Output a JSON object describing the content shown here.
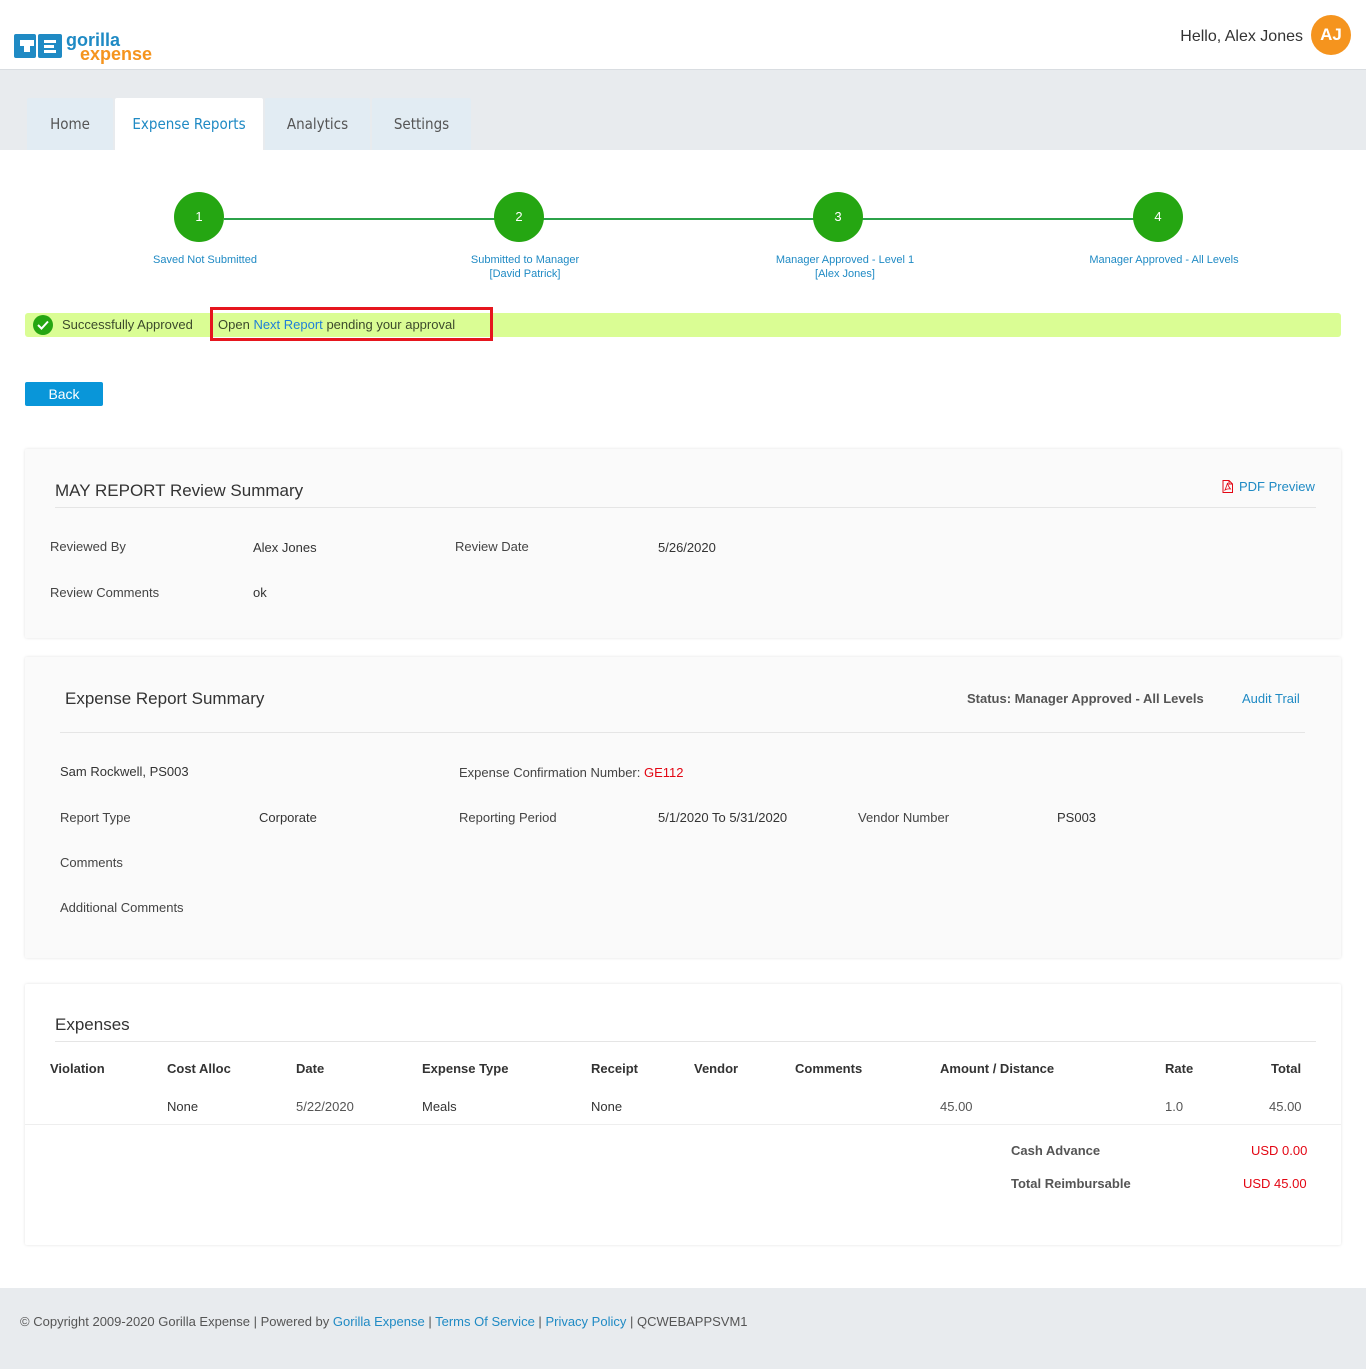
{
  "header": {
    "logo_text_1": "gorilla",
    "logo_text_2": "expense",
    "greeting": "Hello, Alex Jones",
    "avatar_initials": "AJ"
  },
  "tabs": [
    {
      "label": "Home",
      "active": false
    },
    {
      "label": "Expense Reports",
      "active": true
    },
    {
      "label": "Analytics",
      "active": false
    },
    {
      "label": "Settings",
      "active": false
    }
  ],
  "stepper": {
    "steps": [
      {
        "number": "1",
        "line1": "Saved Not Submitted",
        "line2": ""
      },
      {
        "number": "2",
        "line1": "Submitted to Manager",
        "line2": "[David Patrick]"
      },
      {
        "number": "3",
        "line1": "Manager Approved - Level 1",
        "line2": "[Alex Jones]"
      },
      {
        "number": "4",
        "line1": "Manager Approved - All Levels",
        "line2": ""
      }
    ]
  },
  "alert": {
    "message": "Successfully Approved",
    "open_prefix": "Open",
    "next_report_link": "Next Report",
    "open_suffix": "pending your approval"
  },
  "back_label": "Back",
  "review": {
    "title": "MAY REPORT Review Summary",
    "pdf_preview": "PDF Preview",
    "reviewed_by_label": "Reviewed By",
    "reviewed_by": "Alex Jones",
    "review_date_label": "Review Date",
    "review_date": "5/26/2020",
    "comments_label": "Review Comments",
    "comments": "ok"
  },
  "summary": {
    "title": "Expense Report Summary",
    "status": "Status: Manager Approved - All Levels",
    "audit_trail": "Audit Trail",
    "employee": "Sam Rockwell, PS003",
    "confirmation_label": "Expense Confirmation Number:",
    "confirmation_number": "GE112",
    "report_type_label": "Report Type",
    "report_type": "Corporate",
    "period_label": "Reporting Period",
    "period": "5/1/2020 To 5/31/2020",
    "vendor_label": "Vendor Number",
    "vendor": "PS003",
    "comments_label": "Comments",
    "additional_comments_label": "Additional Comments"
  },
  "expenses": {
    "title": "Expenses",
    "columns": [
      "Violation",
      "Cost Alloc",
      "Date",
      "Expense Type",
      "Receipt",
      "Vendor",
      "Comments",
      "Amount / Distance",
      "Rate",
      "Total"
    ],
    "rows": [
      {
        "violation": "",
        "cost_alloc": "None",
        "date": "5/22/2020",
        "expense_type": "Meals",
        "receipt": "None",
        "vendor": "",
        "comments": "",
        "amount": "45.00",
        "rate": "1.0",
        "total": "45.00"
      }
    ],
    "cash_advance_label": "Cash Advance",
    "cash_advance": "USD 0.00",
    "total_reimbursable_label": "Total Reimbursable",
    "total_reimbursable": "USD 45.00"
  },
  "footer": {
    "copyright": "Copyright 2009-2020 Gorilla Expense |",
    "powered_by": "Powered by",
    "powered_link": "Gorilla Expense",
    "sep": "|",
    "terms": "Terms Of Service",
    "privacy": "Privacy Policy",
    "server": "QCWEBAPPSVM1"
  },
  "colors": {
    "accent": "#1f8ac4",
    "step_green": "#25a612",
    "alert_bg": "#dafd94",
    "highlight_border": "#e6161e",
    "avatar": "#f5941e",
    "button": "#0996d9",
    "error_red": "#e30613"
  }
}
